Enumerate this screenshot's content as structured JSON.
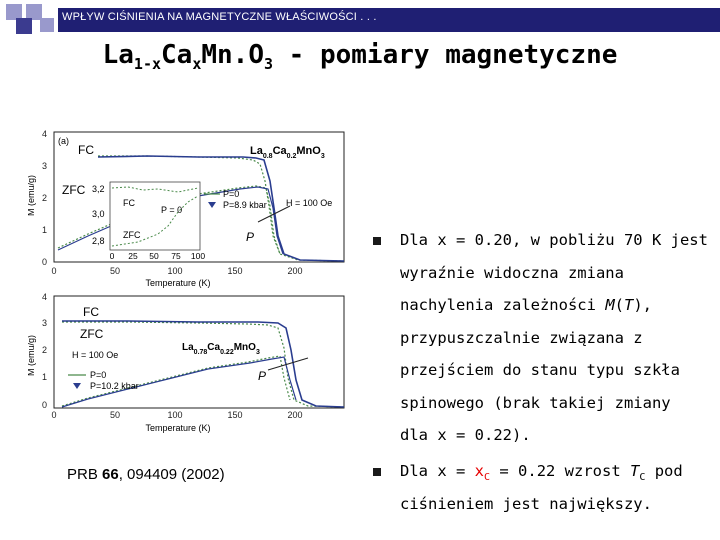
{
  "header": {
    "text": "WPŁYW CIŚNIENIA NA MAGNETYCZNE WŁAŚCIWOŚCI . . ."
  },
  "title": {
    "main": "La",
    "sub1": "1-x",
    "mid": "Ca",
    "sub2": "x",
    "mid2": "Mn.O",
    "sub3": "3",
    "rest": " - pomiary magnetyczne"
  },
  "colors": {
    "header_bg": "#1f1f73",
    "accent": "#e60000",
    "deco": [
      "#9999cc",
      "#3b3b8f"
    ]
  },
  "chart_top": {
    "panel_label": "(a)",
    "compound": {
      "a": "La",
      "s1": "0.8",
      "b": "Ca",
      "s2": "0.2",
      "c": "MnO",
      "s3": "3"
    },
    "fc_label": "FC",
    "zfc_label": "ZFC",
    "p_label": "P",
    "field_label": "H = 100 Oe",
    "legend": [
      "P=0",
      "P=8.9 kbar"
    ],
    "xlabel": "Temperature (K)",
    "ylabel": "M (emu/g)",
    "xticks": [
      "0",
      "50",
      "100",
      "150",
      "200"
    ],
    "yticks": [
      "0",
      "1",
      "2",
      "3",
      "4"
    ],
    "inset": {
      "yticks": [
        "3,2",
        "3,0",
        "2,8"
      ],
      "xticks": [
        "0",
        "25",
        "50",
        "75",
        "100"
      ],
      "fc": "FC",
      "zfc": "ZFC",
      "p": "P = 0"
    }
  },
  "chart_bottom": {
    "fc_label": "FC",
    "zfc_label": "ZFC",
    "p_label": "P",
    "field_label": "H = 100 Oe",
    "compound": {
      "a": "La",
      "s1": "0.78",
      "b": "Ca",
      "s2": "0.22",
      "c": "MnO",
      "s3": "3"
    },
    "legend": [
      "P=0",
      "P=10.2 kbar"
    ],
    "xlabel": "Temperature (K)",
    "ylabel": "M (emu/g)",
    "xticks": [
      "0",
      "50",
      "100",
      "150",
      "200"
    ],
    "yticks": [
      "0",
      "1",
      "2",
      "3",
      "4"
    ]
  },
  "bullet1": {
    "l1": "Dla x = 0.20, w pobliżu 70 K jest",
    "l2": "wyraźnie widoczna zmiana",
    "l3a": "nachylenia  zależności ",
    "l3b": "M",
    "l3c": "(",
    "l3d": "T",
    "l3e": "),",
    "l4": "przypuszczalnie związana z",
    "l5": "przejściem do stanu typu szkła",
    "l6": "spinowego (brak takiej zmiany",
    "l7": "dla x = 0.22)."
  },
  "bullet2": {
    "l1a": "Dla x = ",
    "l1b": "x",
    "l1c": "C",
    "l1d": " = 0.22 wzrost ",
    "l1e": "T",
    "l1f": "C",
    "l1g": " pod",
    "l2": "ciśnieniem jest największy."
  },
  "reference": {
    "a": "PRB ",
    "b": "66",
    "c": ", 094409 (2002)"
  }
}
